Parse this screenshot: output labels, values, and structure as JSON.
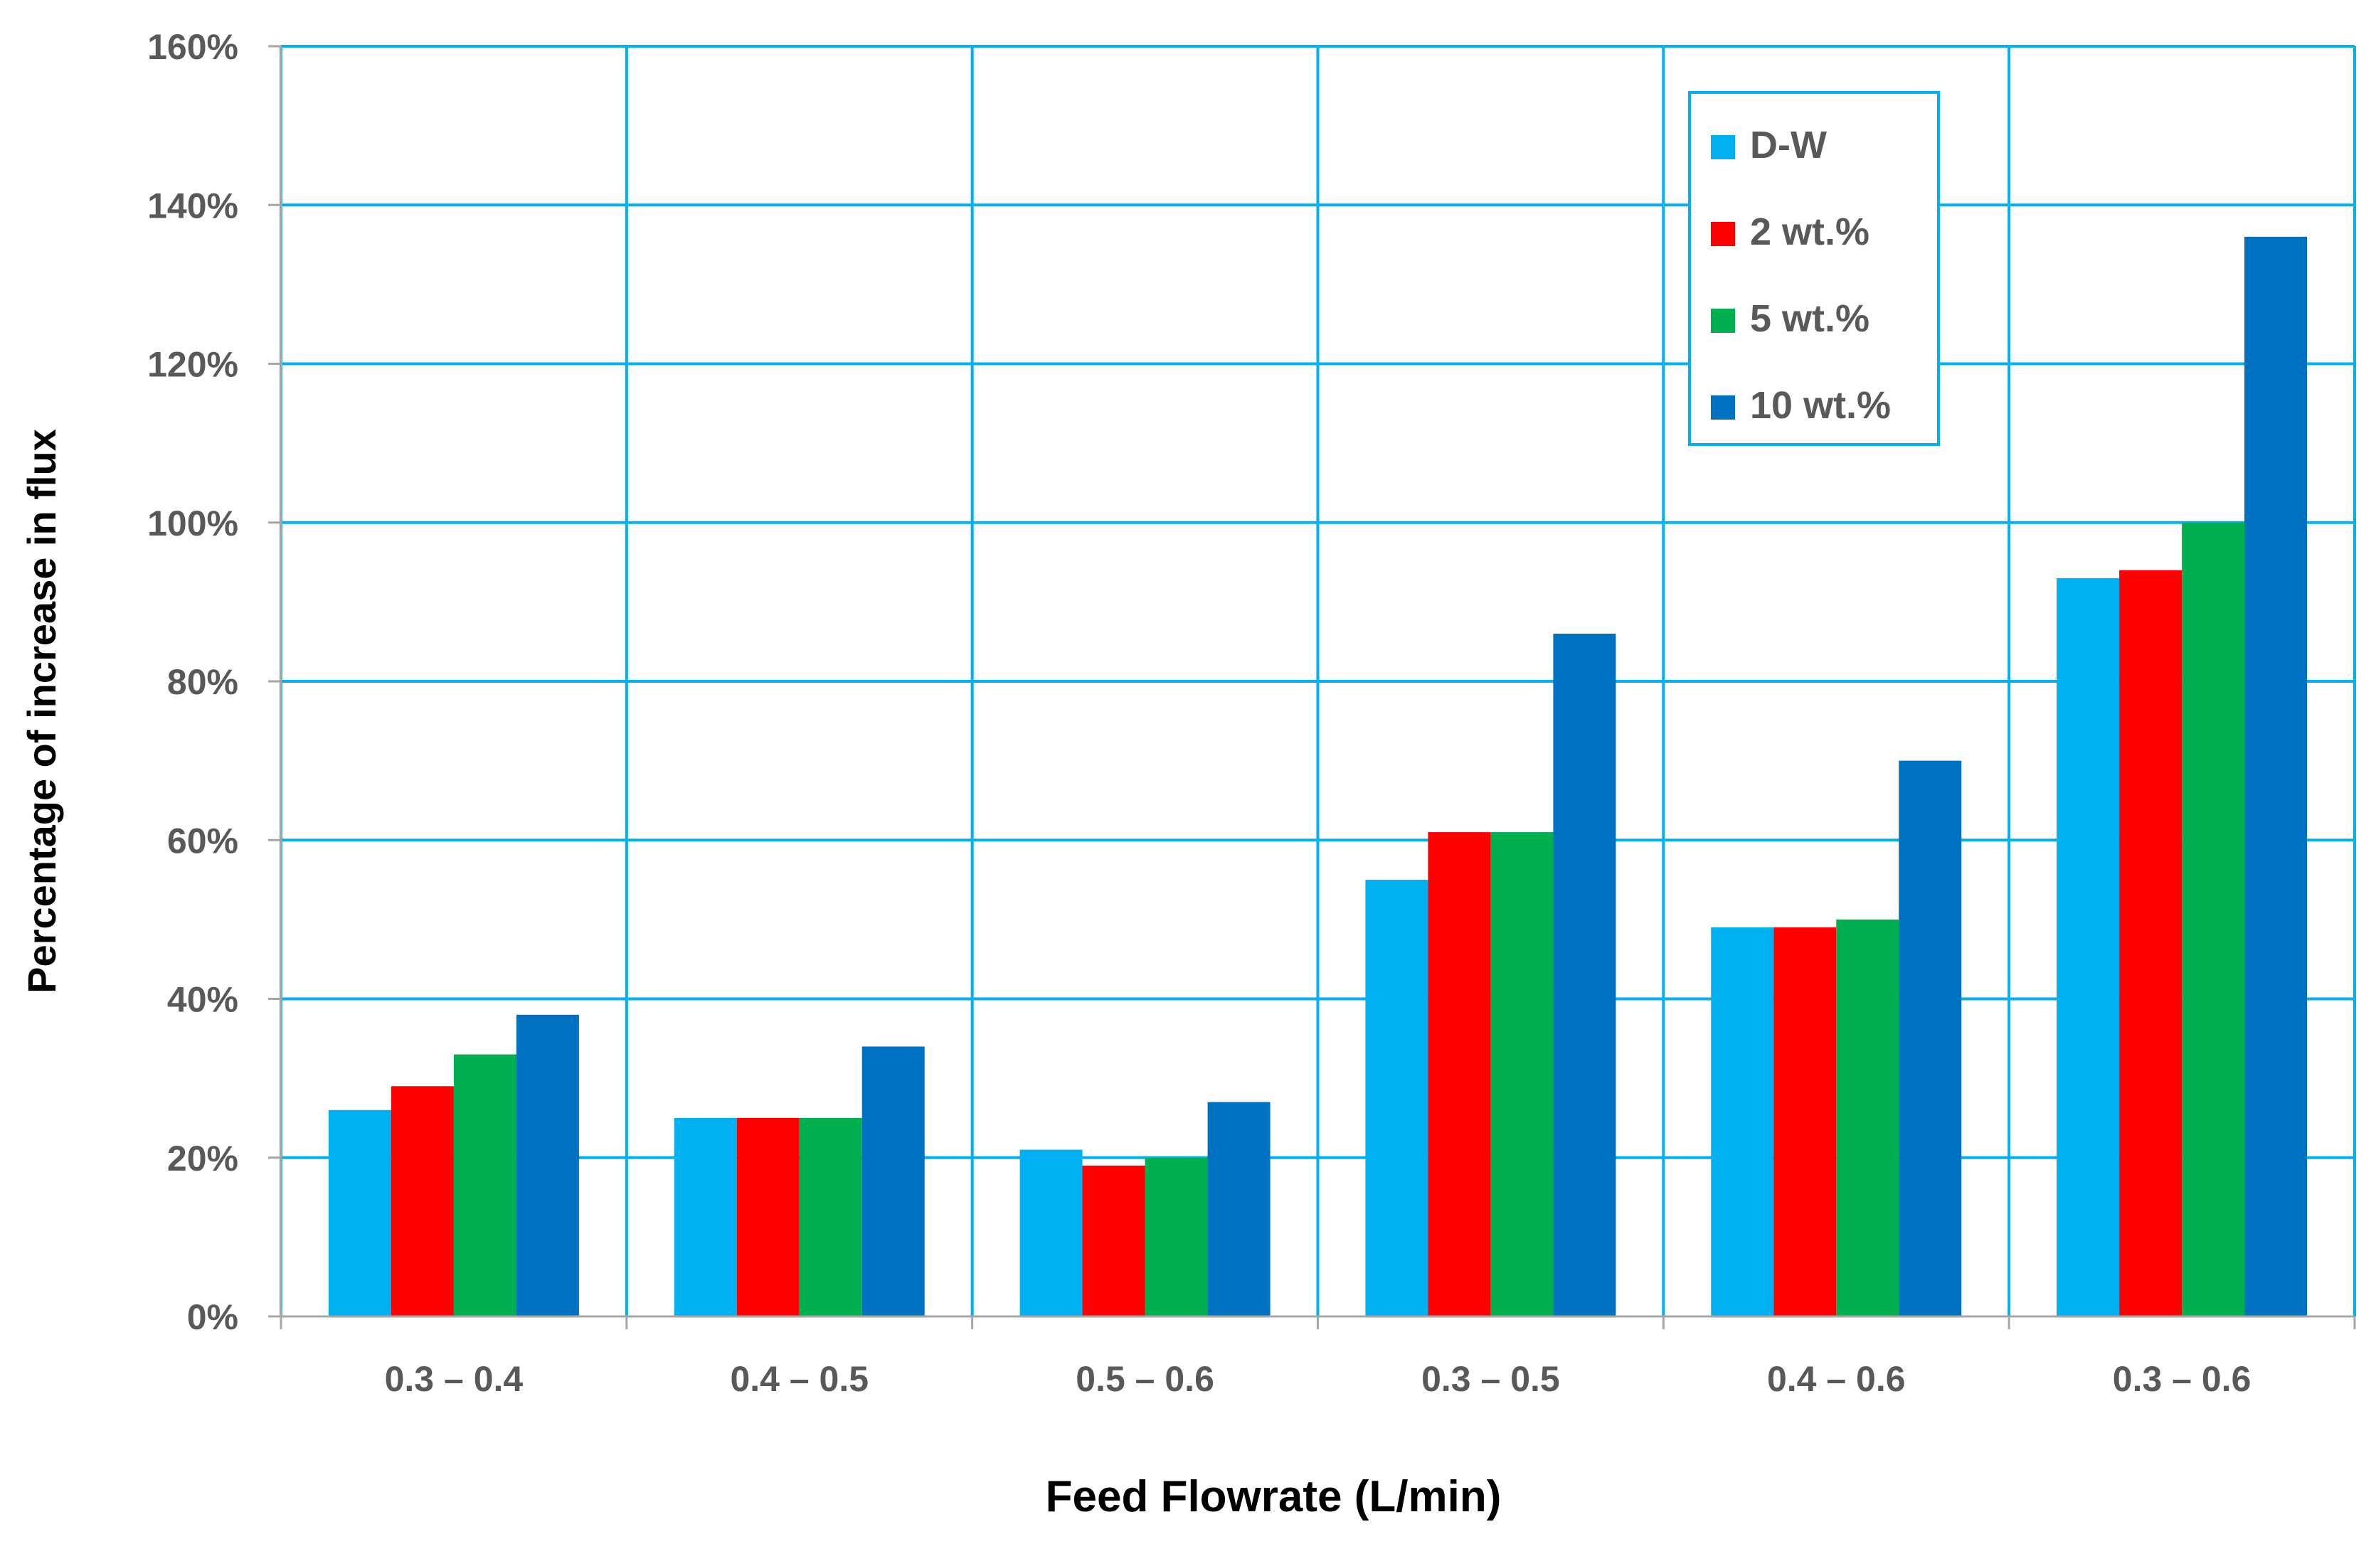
{
  "chart_data": {
    "type": "bar",
    "title": "",
    "xlabel": "Feed Flowrate (L/min)",
    "ylabel": "Percentage of increase in flux",
    "categories": [
      "0.3 – 0.4",
      "0.4 – 0.5",
      "0.5 – 0.6",
      "0.3 – 0.5",
      "0.4 – 0.6",
      "0.3 – 0.6"
    ],
    "series": [
      {
        "name": "D-W",
        "color": "#00b0f0",
        "values": [
          26,
          25,
          21,
          55,
          49,
          93
        ]
      },
      {
        "name": "2 wt.%",
        "color": "#ff0000",
        "values": [
          29,
          25,
          19,
          61,
          49,
          94
        ]
      },
      {
        "name": "5 wt.%",
        "color": "#00b050",
        "values": [
          33,
          25,
          20,
          61,
          50,
          100
        ]
      },
      {
        "name": "10 wt.%",
        "color": "#0070c0",
        "values": [
          38,
          34,
          27,
          86,
          70,
          136
        ]
      }
    ],
    "ylim": [
      0,
      160
    ],
    "ytick_step": 20,
    "ytick_suffix": "%",
    "grid": true,
    "grid_color": "#00b0f0",
    "legend_position": "top-right"
  }
}
